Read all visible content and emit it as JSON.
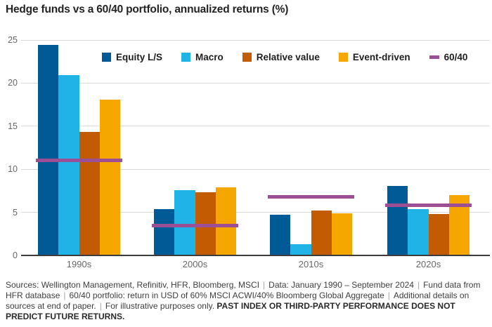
{
  "title": "Hedge funds vs a 60/40 portfolio, annualized returns (%)",
  "chart_data": {
    "type": "bar",
    "title": "Hedge funds vs a 60/40 portfolio, annualized returns (%)",
    "categories": [
      "1990s",
      "2000s",
      "2010s",
      "2020s"
    ],
    "series": [
      {
        "name": "Equity L/S",
        "color": "#005A96",
        "values": [
          24.4,
          5.4,
          4.7,
          8.1
        ]
      },
      {
        "name": "Macro",
        "color": "#1FB3E6",
        "values": [
          20.9,
          7.6,
          1.3,
          5.4
        ]
      },
      {
        "name": "Relative value",
        "color": "#C25B01",
        "values": [
          14.3,
          7.3,
          5.2,
          4.8
        ]
      },
      {
        "name": "Event-driven",
        "color": "#F5A700",
        "values": [
          18.1,
          7.9,
          4.9,
          7.0
        ]
      }
    ],
    "line_series": {
      "name": "60/40",
      "color": "#9C4F95",
      "values": [
        11.0,
        3.5,
        6.8,
        5.8
      ]
    },
    "ylim": [
      0,
      25
    ],
    "yticks": [
      0,
      5,
      10,
      15,
      20,
      25
    ],
    "grid": true,
    "legend_position": "top",
    "colors": {
      "gridline": "#DBDBDB",
      "axis_line": "#3B3B3B",
      "tick_label": "#666666"
    }
  },
  "footer": {
    "separator": "|",
    "segments": [
      "Sources: Wellington Management, Refinitiv, HFR, Bloomberg, MSCI",
      "Data: January 1990 – September 2024",
      "Fund data from HFR database",
      "60/40 portfolio: return in USD of 60% MSCI ACWI/40% Bloomberg Global Aggregate",
      "Additional details on sources at end of paper.",
      "For illustrative purposes only."
    ],
    "bold_note": "PAST INDEX OR THIRD-PARTY PERFORMANCE DOES NOT PREDICT FUTURE RETURNS."
  }
}
